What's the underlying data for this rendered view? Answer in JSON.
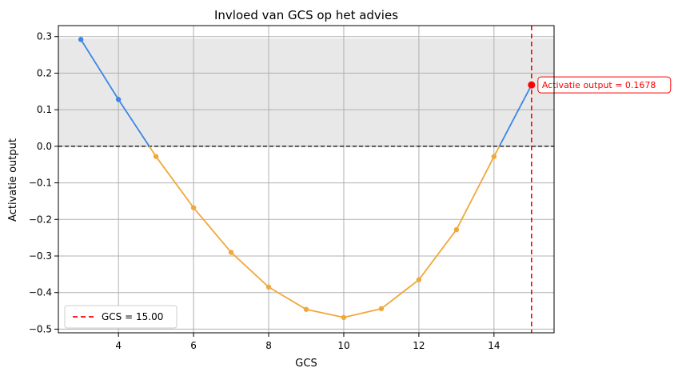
{
  "chart_data": {
    "type": "line",
    "title": "Invloed van GCS op het advies",
    "xlabel": "GCS",
    "ylabel": "Activatie output",
    "xlim": [
      2.4,
      15.6
    ],
    "ylim": [
      -0.51,
      0.33
    ],
    "x_ticks": [
      "4",
      "6",
      "8",
      "10",
      "12",
      "14"
    ],
    "x_tick_values": [
      4,
      6,
      8,
      10,
      12,
      14
    ],
    "y_ticks": [
      "−0.5",
      "−0.4",
      "−0.3",
      "−0.2",
      "−0.1",
      "0.0",
      "0.1",
      "0.2",
      "0.3"
    ],
    "y_tick_values": [
      -0.5,
      -0.4,
      -0.3,
      -0.2,
      -0.1,
      0.0,
      0.1,
      0.2,
      0.3
    ],
    "grid": true,
    "positive_region": {
      "y_from": 0,
      "y_to": 0.295,
      "color": "#e8e8e8"
    },
    "zero_line": {
      "y": 0,
      "color": "#000000",
      "style": "dashed"
    },
    "series": [
      {
        "x": [
          3,
          4,
          5,
          6,
          7,
          8,
          9,
          10,
          11,
          12,
          13,
          14,
          15
        ],
        "y": [
          0.292,
          0.128,
          -0.028,
          -0.168,
          -0.29,
          -0.385,
          -0.446,
          -0.468,
          -0.444,
          -0.365,
          -0.228,
          -0.028,
          0.1678
        ],
        "color_positive": "#3b86e8",
        "color_negative": "#f2a73b"
      }
    ],
    "marker": {
      "x": 15,
      "y": 0.1678,
      "color": "#ff0000",
      "annotation": "Activatie output = 0.1678"
    },
    "vline": {
      "x": 15,
      "color": "#ff0000",
      "style": "dashed"
    },
    "legend": {
      "position": "lower-left",
      "entries": [
        {
          "label": "GCS = 15.00",
          "color": "#ff0000",
          "style": "dashed"
        }
      ]
    }
  }
}
